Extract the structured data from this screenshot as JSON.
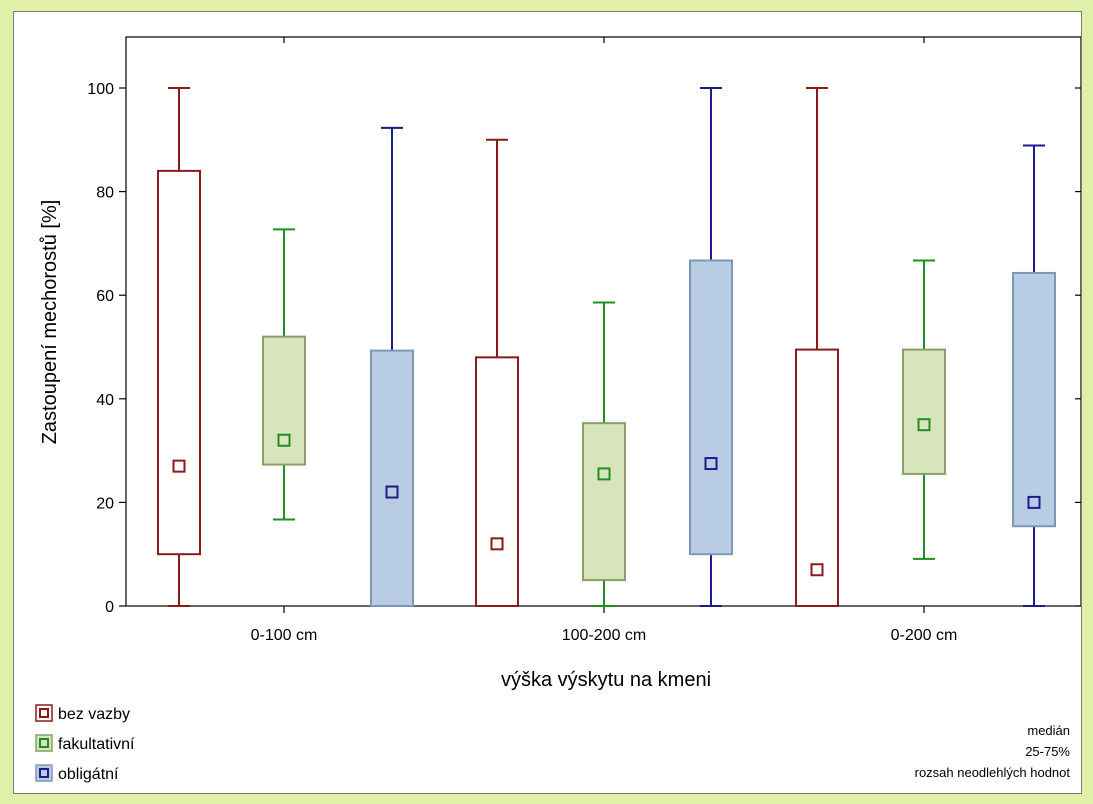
{
  "colors": {
    "page_background": "#e0f0a8",
    "bez_vazby": "#8b1a1a",
    "fakultativni": "#1f8f1f",
    "fakultativni_fill": "#d8e4bc",
    "obligatni": "#1c1c8c",
    "obligatni_fill": "#b8cce4",
    "obligatni_box_stroke": "#7f96b8"
  },
  "chart_data": {
    "type": "box",
    "xlabel": "výška výskytu na kmeni",
    "ylabel": "Zastoupení mechorostů [%]",
    "ylim": [
      0,
      110
    ],
    "yticks": [
      0,
      20,
      40,
      60,
      80,
      100
    ],
    "categories": [
      "0-100 cm",
      "100-200 cm",
      "0-200 cm"
    ],
    "grid": false,
    "legend_position": "bottom-left",
    "series": [
      {
        "name": "bez vazby",
        "boxes": [
          {
            "min": 0,
            "q1": 10,
            "median": 27,
            "q3": 84,
            "max": 100
          },
          {
            "min": 0,
            "q1": 0,
            "median": 12,
            "q3": 48,
            "max": 90
          },
          {
            "min": 0,
            "q1": 0,
            "median": 7,
            "q3": 49.5,
            "max": 100
          }
        ]
      },
      {
        "name": "fakultativní",
        "boxes": [
          {
            "min": 16.7,
            "q1": 27.3,
            "median": 32,
            "q3": 52,
            "max": 72.7
          },
          {
            "min": 0,
            "q1": 5,
            "median": 25.5,
            "q3": 35.3,
            "max": 58.6
          },
          {
            "min": 9.1,
            "q1": 25.5,
            "median": 35,
            "q3": 49.5,
            "max": 66.7
          }
        ]
      },
      {
        "name": "obligátní",
        "boxes": [
          {
            "min": 0,
            "q1": 0,
            "median": 22,
            "q3": 49.3,
            "max": 92.3
          },
          {
            "min": 0,
            "q1": 10,
            "median": 27.5,
            "q3": 66.7,
            "max": 100
          },
          {
            "min": 0,
            "q1": 15.4,
            "median": 20,
            "q3": 64.3,
            "max": 88.9
          }
        ]
      }
    ],
    "legend": [
      "bez vazby",
      "fakultativní",
      "obligátní"
    ],
    "notes": [
      "medián",
      "25-75%",
      "rozsah neodlehlých hodnot"
    ]
  }
}
